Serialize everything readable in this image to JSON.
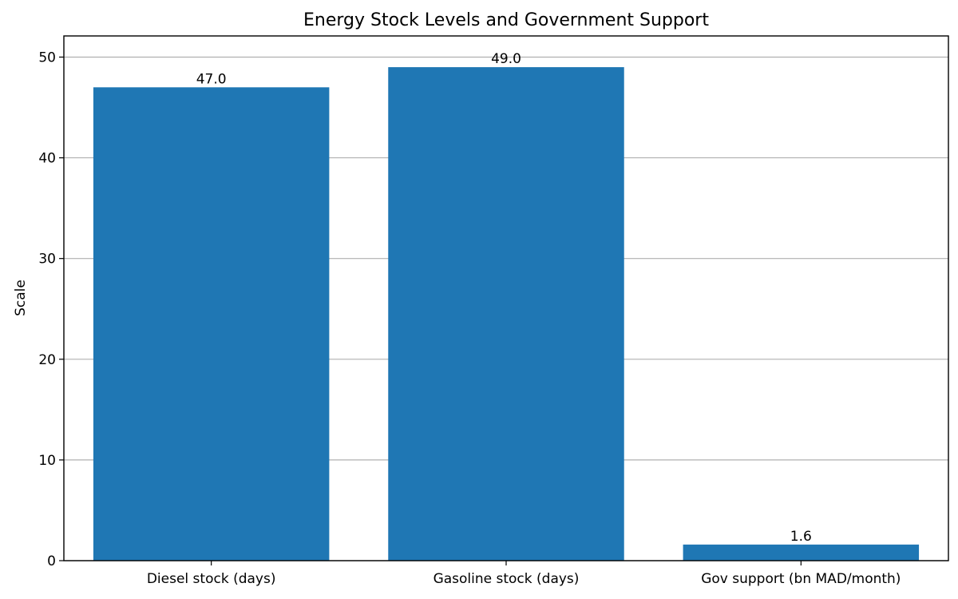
{
  "chart_data": {
    "type": "bar",
    "title": "Energy Stock Levels and Government Support",
    "xlabel": "",
    "ylabel": "Scale",
    "categories": [
      "Diesel stock (days)",
      "Gasoline stock (days)",
      "Gov support (bn MAD/month)"
    ],
    "values": [
      47.0,
      49.0,
      1.6
    ],
    "data_labels": [
      "47.0",
      "49.0",
      "1.6"
    ],
    "yticks": [
      0,
      10,
      20,
      30,
      40,
      50
    ],
    "ylim": [
      0,
      52.1
    ],
    "grid": "y",
    "bar_color": "#1f77b4"
  }
}
